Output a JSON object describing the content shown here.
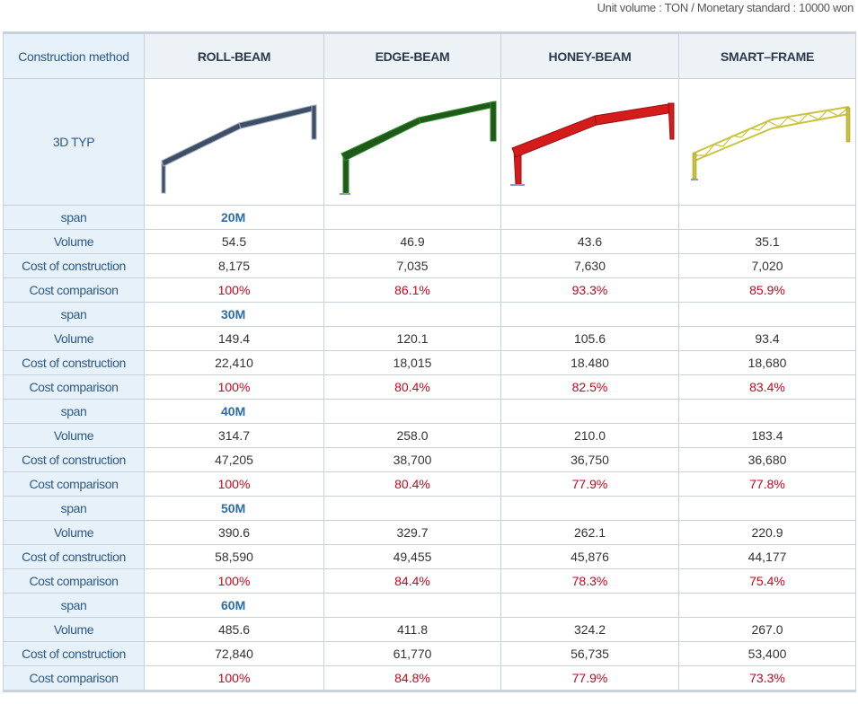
{
  "unit_note": "Unit volume : TON / Monetary standard : 10000 won",
  "header": {
    "label": "Construction method",
    "methods": [
      "ROLL-BEAM",
      "EDGE-BEAM",
      "HONEY-BEAM",
      "SMART–FRAME"
    ]
  },
  "type_row": {
    "label": "3D TYP",
    "frames": [
      {
        "icon": "roll-beam-frame-icon",
        "color": "#3d4e66",
        "edge": "#9aa7b8"
      },
      {
        "icon": "edge-beam-frame-icon",
        "color": "#1f5a1a",
        "edge": "#2e8a28"
      },
      {
        "icon": "honey-beam-frame-icon",
        "color": "#d41c1c",
        "edge": "#9a0f0f"
      },
      {
        "icon": "smart-frame-truss-icon",
        "color": "#c9c23a",
        "edge": "#8f8a20"
      }
    ]
  },
  "row_labels": {
    "span": "span",
    "volume": "Volume",
    "cost": "Cost of construction",
    "comparison": "Cost comparison"
  },
  "groups": [
    {
      "span": "20M",
      "volume": [
        "54.5",
        "46.9",
        "43.6",
        "35.1"
      ],
      "cost": [
        "8,175",
        "7,035",
        "7,630",
        "7,020"
      ],
      "comparison": [
        "100%",
        "86.1%",
        "93.3%",
        "85.9%"
      ]
    },
    {
      "span": "30M",
      "volume": [
        "149.4",
        "120.1",
        "105.6",
        "93.4"
      ],
      "cost": [
        "22,410",
        "18,015",
        "18.480",
        "18,680"
      ],
      "comparison": [
        "100%",
        "80.4%",
        "82.5%",
        "83.4%"
      ]
    },
    {
      "span": "40M",
      "volume": [
        "314.7",
        "258.0",
        "210.0",
        "183.4"
      ],
      "cost": [
        "47,205",
        "38,700",
        "36,750",
        "36,680"
      ],
      "comparison": [
        "100%",
        "80.4%",
        "77.9%",
        "77.8%"
      ]
    },
    {
      "span": "50M",
      "volume": [
        "390.6",
        "329.7",
        "262.1",
        "220.9"
      ],
      "cost": [
        "58,590",
        "49,455",
        "45,876",
        "44,177"
      ],
      "comparison": [
        "100%",
        "84.4%",
        "78.3%",
        "75.4%"
      ]
    },
    {
      "span": "60M",
      "volume": [
        "485.6",
        "411.8",
        "324.2",
        "267.0"
      ],
      "cost": [
        "72,840",
        "61,770",
        "56,735",
        "53,400"
      ],
      "comparison": [
        "100%",
        "84.8%",
        "77.9%",
        "73.3%"
      ]
    }
  ]
}
